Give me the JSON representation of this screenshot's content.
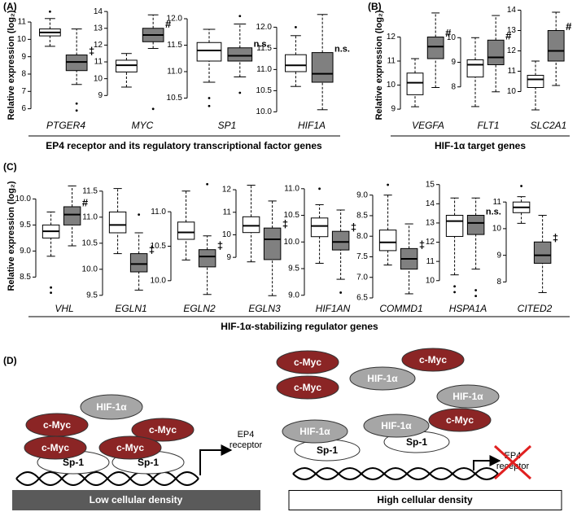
{
  "panels": [
    {
      "label": "(A)",
      "y_label": "Relative expression (log₂)",
      "caption": "EP4 receptor and its regulatory transcriptional factor genes"
    },
    {
      "label": "(B)",
      "y_label": "Relative expression (log₂)",
      "caption": "HIF-1α target genes"
    },
    {
      "label": "(C)",
      "y_label": "Relative expression (log₂)",
      "caption": "HIF-1α-stabilizing regulator genes"
    }
  ],
  "chart_data": [
    {
      "type": "box",
      "x_label": "PTGER4",
      "ylim": [
        5.7,
        11.8
      ],
      "yticks": [
        6,
        7,
        8,
        9,
        10,
        11
      ],
      "annotation": "‡",
      "series": [
        {
          "color": "#ffffff",
          "stats": {
            "whisker_low": 9.6,
            "q1": 10.2,
            "median": 10.4,
            "q3": 10.6,
            "whisker_high": 11.2
          },
          "outliers": [
            11.6
          ]
        },
        {
          "color": "#808080",
          "stats": {
            "whisker_low": 7.4,
            "q1": 8.2,
            "median": 8.7,
            "q3": 9.1,
            "whisker_high": 10.6
          },
          "outliers": [
            6.3,
            5.9
          ]
        }
      ]
    },
    {
      "type": "box",
      "x_label": "MYC",
      "ylim": [
        7.9,
        14.2
      ],
      "yticks": [
        9,
        10,
        11,
        12,
        13,
        14
      ],
      "annotation": "#",
      "series": [
        {
          "color": "#ffffff",
          "stats": {
            "whisker_low": 9.5,
            "q1": 10.4,
            "median": 10.8,
            "q3": 11.1,
            "whisker_high": 11.5
          },
          "outliers": []
        },
        {
          "color": "#808080",
          "stats": {
            "whisker_low": 11.8,
            "q1": 12.2,
            "median": 12.6,
            "q3": 13.0,
            "whisker_high": 13.8
          },
          "outliers": [
            8.2
          ]
        }
      ]
    },
    {
      "type": "box",
      "x_label": "SP1",
      "ylim": [
        10.2,
        12.2
      ],
      "yticks": [
        10.5,
        {
          "value": 11,
          "label": "11.0"
        },
        11.5,
        {
          "value": 12,
          "label": "12.0"
        }
      ],
      "annotation": "n.s.",
      "series": [
        {
          "color": "#ffffff",
          "stats": {
            "whisker_low": 10.8,
            "q1": 11.2,
            "median": 11.4,
            "q3": 11.55,
            "whisker_high": 11.8
          },
          "outliers": [
            10.5,
            10.35
          ]
        },
        {
          "color": "#808080",
          "stats": {
            "whisker_low": 10.9,
            "q1": 11.2,
            "median": 11.3,
            "q3": 11.45,
            "whisker_high": 11.9
          },
          "outliers": [
            12.05,
            10.6
          ]
        }
      ]
    },
    {
      "type": "box",
      "x_label": "HIF1A",
      "ylim": [
        9.95,
        12.45
      ],
      "yticks": [
        {
          "value": 10,
          "label": "10.0"
        },
        10.5,
        {
          "value": 11,
          "label": "11.0"
        },
        11.5,
        {
          "value": 12,
          "label": "12.0"
        }
      ],
      "annotation": "n.s.",
      "series": [
        {
          "color": "#ffffff",
          "stats": {
            "whisker_low": 10.6,
            "q1": 10.95,
            "median": 11.1,
            "q3": 11.35,
            "whisker_high": 11.8
          },
          "outliers": [
            12.0
          ]
        },
        {
          "color": "#808080",
          "stats": {
            "whisker_low": 10.05,
            "q1": 10.7,
            "median": 10.9,
            "q3": 11.4,
            "whisker_high": 12.3
          },
          "outliers": []
        }
      ]
    },
    {
      "type": "box",
      "x_label": "VEGFA",
      "ylim": [
        8.8,
        13.2
      ],
      "yticks": [
        9,
        10,
        11,
        12
      ],
      "annotation": "#",
      "series": [
        {
          "color": "#ffffff",
          "stats": {
            "whisker_low": 9.1,
            "q1": 9.6,
            "median": 10.1,
            "q3": 10.5,
            "whisker_high": 11.1
          },
          "outliers": []
        },
        {
          "color": "#808080",
          "stats": {
            "whisker_low": 9.9,
            "q1": 11.1,
            "median": 11.6,
            "q3": 12.0,
            "whisker_high": 13.0
          },
          "outliers": []
        }
      ]
    },
    {
      "type": "box",
      "x_label": "FLT1",
      "ylim": [
        6.9,
        11.2
      ],
      "yticks": [
        8,
        9,
        10
      ],
      "annotation": "#",
      "series": [
        {
          "color": "#ffffff",
          "stats": {
            "whisker_low": 7.2,
            "q1": 8.4,
            "median": 8.9,
            "q3": 9.1,
            "whisker_high": 10.0
          },
          "outliers": []
        },
        {
          "color": "#808080",
          "stats": {
            "whisker_low": 7.8,
            "q1": 8.9,
            "median": 9.2,
            "q3": 9.9,
            "whisker_high": 10.9
          },
          "outliers": []
        }
      ]
    },
    {
      "type": "box",
      "x_label": "SLC2A1",
      "ylim": [
        8.9,
        14.1
      ],
      "yticks": [
        10,
        11,
        12,
        13,
        14
      ],
      "annotation": "#",
      "series": [
        {
          "color": "#ffffff",
          "stats": {
            "whisker_low": 9.1,
            "q1": 10.2,
            "median": 10.6,
            "q3": 10.8,
            "whisker_high": 11.5
          },
          "outliers": []
        },
        {
          "color": "#808080",
          "stats": {
            "whisker_low": 10.3,
            "q1": 11.5,
            "median": 12.0,
            "q3": 13.0,
            "whisker_high": 13.9
          },
          "outliers": []
        }
      ]
    },
    {
      "type": "box",
      "x_label": "VHL",
      "ylim": [
        8.1,
        10.35
      ],
      "yticks": [
        8.5,
        {
          "value": 9,
          "label": "9.0"
        },
        9.5,
        {
          "value": 10,
          "label": "10.0"
        }
      ],
      "annotation": "#",
      "series": [
        {
          "color": "#ffffff",
          "stats": {
            "whisker_low": 8.9,
            "q1": 9.25,
            "median": 9.38,
            "q3": 9.5,
            "whisker_high": 9.75
          },
          "outliers": [
            8.3,
            8.2
          ]
        },
        {
          "color": "#808080",
          "stats": {
            "whisker_low": 9.1,
            "q1": 9.5,
            "median": 9.7,
            "q3": 9.85,
            "whisker_high": 10.25
          },
          "outliers": []
        }
      ]
    },
    {
      "type": "box",
      "x_label": "EGLN1",
      "ylim": [
        9.45,
        11.7
      ],
      "yticks": [
        9.5,
        {
          "value": 10,
          "label": "10.0"
        },
        10.5,
        {
          "value": 11,
          "label": "11.0"
        },
        11.5
      ],
      "annotation": "‡",
      "series": [
        {
          "color": "#ffffff",
          "stats": {
            "whisker_low": 10.3,
            "q1": 10.7,
            "median": 10.85,
            "q3": 11.1,
            "whisker_high": 11.55
          },
          "outliers": []
        },
        {
          "color": "#808080",
          "stats": {
            "whisker_low": 9.6,
            "q1": 9.95,
            "median": 10.1,
            "q3": 10.3,
            "whisker_high": 10.7
          },
          "outliers": [
            11.05
          ]
        }
      ]
    },
    {
      "type": "box",
      "x_label": "EGLN2",
      "ylim": [
        9.75,
        11.45
      ],
      "yticks": [
        {
          "value": 10,
          "label": "10.0"
        },
        10.5,
        {
          "value": 11,
          "label": "11.0"
        }
      ],
      "annotation": "‡",
      "series": [
        {
          "color": "#ffffff",
          "stats": {
            "whisker_low": 10.3,
            "q1": 10.6,
            "median": 10.7,
            "q3": 10.85,
            "whisker_high": 11.3
          },
          "outliers": []
        },
        {
          "color": "#808080",
          "stats": {
            "whisker_low": 9.8,
            "q1": 10.2,
            "median": 10.35,
            "q3": 10.45,
            "whisker_high": 10.65
          },
          "outliers": [
            11.4
          ]
        }
      ]
    },
    {
      "type": "box",
      "x_label": "EGLN3",
      "ylim": [
        7.2,
        12.4
      ],
      "yticks": [
        9,
        10,
        11,
        12
      ],
      "annotation": "‡",
      "series": [
        {
          "color": "#ffffff",
          "stats": {
            "whisker_low": 8.8,
            "q1": 10.1,
            "median": 10.4,
            "q3": 10.8,
            "whisker_high": 12.2
          },
          "outliers": []
        },
        {
          "color": "#808080",
          "stats": {
            "whisker_low": 7.3,
            "q1": 8.9,
            "median": 9.8,
            "q3": 10.3,
            "whisker_high": 11.5
          },
          "outliers": []
        }
      ]
    },
    {
      "type": "box",
      "x_label": "HIF1AN",
      "ylim": [
        8.95,
        11.15
      ],
      "yticks": [
        {
          "value": 9,
          "label": "9.0"
        },
        9.5,
        {
          "value": 10,
          "label": "10.0"
        },
        10.5,
        {
          "value": 11,
          "label": "11.0"
        }
      ],
      "annotation": "‡",
      "series": [
        {
          "color": "#ffffff",
          "stats": {
            "whisker_low": 9.6,
            "q1": 10.1,
            "median": 10.3,
            "q3": 10.45,
            "whisker_high": 10.7
          },
          "outliers": [
            11.0
          ]
        },
        {
          "color": "#808080",
          "stats": {
            "whisker_low": 9.3,
            "q1": 9.85,
            "median": 10.0,
            "q3": 10.2,
            "whisker_high": 10.6
          },
          "outliers": [
            9.05
          ]
        }
      ]
    },
    {
      "type": "box",
      "x_label": "COMMD1",
      "ylim": [
        6.5,
        9.35
      ],
      "yticks": [
        6.5,
        {
          "value": 7,
          "label": "7.0"
        },
        7.5,
        {
          "value": 8,
          "label": "8.0"
        },
        8.5,
        {
          "value": 9,
          "label": "9.0"
        }
      ],
      "annotation": "‡",
      "series": [
        {
          "color": "#ffffff",
          "stats": {
            "whisker_low": 7.3,
            "q1": 7.65,
            "median": 7.85,
            "q3": 8.15,
            "whisker_high": 9.0
          },
          "outliers": [
            9.25
          ]
        },
        {
          "color": "#808080",
          "stats": {
            "whisker_low": 6.6,
            "q1": 7.2,
            "median": 7.45,
            "q3": 7.7,
            "whisker_high": 8.3
          },
          "outliers": []
        }
      ]
    },
    {
      "type": "box",
      "x_label": "HSPA1A",
      "ylim": [
        9.1,
        15.2
      ],
      "yticks": [
        10,
        11,
        12,
        13,
        14,
        15
      ],
      "annotation": "n.s.",
      "series": [
        {
          "color": "#ffffff",
          "stats": {
            "whisker_low": 10.3,
            "q1": 12.3,
            "median": 13.1,
            "q3": 13.4,
            "whisker_high": 14.3
          },
          "outliers": [
            9.7,
            9.4
          ]
        },
        {
          "color": "#808080",
          "stats": {
            "whisker_low": 10.6,
            "q1": 12.4,
            "median": 13.0,
            "q3": 13.4,
            "whisker_high": 14.3
          },
          "outliers": [
            9.5,
            9.2
          ]
        }
      ]
    },
    {
      "type": "box",
      "x_label": "CITED2",
      "ylim": [
        7.4,
        11.8
      ],
      "yticks": [
        8,
        9,
        10,
        11
      ],
      "annotation": "‡",
      "series": [
        {
          "color": "#ffffff",
          "stats": {
            "whisker_low": 10.2,
            "q1": 10.6,
            "median": 10.8,
            "q3": 11.0,
            "whisker_high": 11.2
          },
          "outliers": [
            11.6
          ]
        },
        {
          "color": "#808080",
          "stats": {
            "whisker_low": 7.6,
            "q1": 8.7,
            "median": 9.0,
            "q3": 9.5,
            "whisker_high": 10.5
          },
          "outliers": []
        }
      ]
    }
  ],
  "diagram": {
    "label": "(D)",
    "low": {
      "proteins": [
        "Sp-1",
        "Sp-1",
        "HIF-1α",
        "c-Myc",
        "c-Myc",
        "c-Myc",
        "c-Myc"
      ],
      "target": [
        "EP4",
        "receptor"
      ],
      "caption": "Low cellular density"
    },
    "high": {
      "proteins": [
        "Sp-1",
        "Sp-1",
        "HIF-1α",
        "HIF-1α",
        "HIF-1α",
        "HIF-1α",
        "c-Myc",
        "c-Myc",
        "c-Myc",
        "c-Myc"
      ],
      "target": [
        "EP4",
        "receptor"
      ],
      "caption": "High cellular density"
    }
  }
}
